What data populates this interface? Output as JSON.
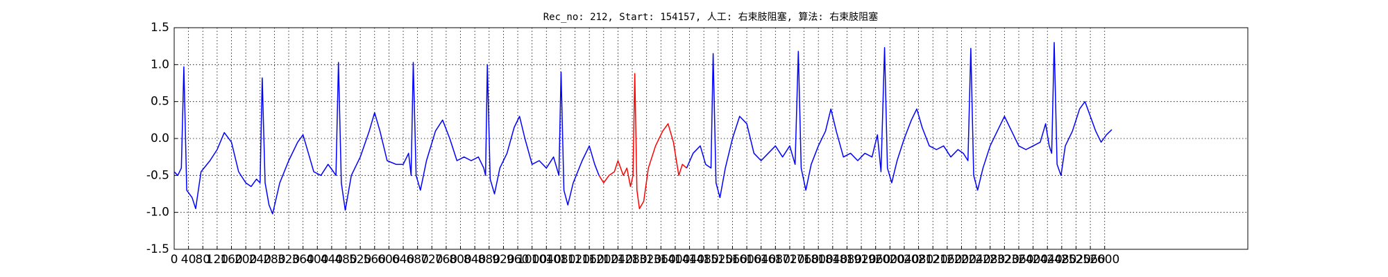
{
  "chart_data": {
    "type": "line",
    "title": "Rec_no: 212, Start: 154157, 人工: 右束肢阻塞, 算法: 右束肢阻塞",
    "xlim": [
      0,
      3000
    ],
    "ylim": [
      -1.5,
      1.5
    ],
    "xticks": [
      0,
      40,
      80,
      120,
      160,
      200,
      240,
      280,
      320,
      360,
      400,
      440,
      480,
      520,
      560,
      600,
      640,
      680,
      720,
      760,
      800,
      840,
      880,
      920,
      960,
      1000,
      1040,
      1080,
      1120,
      1160,
      1200,
      1240,
      1280,
      1320,
      1360,
      1400,
      1440,
      1480,
      1520,
      1560,
      1600,
      1640,
      1680,
      1720,
      1760,
      1800,
      1840,
      1880,
      1920,
      1960,
      2000,
      2040,
      2080,
      2120,
      2160,
      2200,
      2240,
      2280,
      2320,
      2360,
      2400,
      2440,
      2480,
      2520,
      2560,
      2600
    ],
    "yticks": [
      -1.5,
      {
        "value": -1.0,
        "label": "-1.0"
      },
      -0.5,
      {
        "value": 0.0,
        "label": "0.0"
      },
      0.5,
      {
        "value": 1.0,
        "label": "1.0"
      },
      1.5
    ],
    "grid": true,
    "series": [
      {
        "color": "#0000ff",
        "x": [
          0,
          10,
          20,
          27,
          35,
          50,
          60,
          75,
          100,
          120,
          140,
          160,
          180,
          200,
          215,
          230,
          240,
          246,
          254,
          265,
          275,
          295,
          320,
          345,
          360,
          375,
          390,
          410,
          430,
          445,
          452,
          459,
          467,
          478,
          495,
          520,
          545,
          560,
          575,
          595,
          620,
          640,
          655,
          662,
          668,
          676,
          688,
          705,
          730,
          750,
          770,
          790,
          810,
          830,
          850,
          865,
          870,
          875,
          883,
          895,
          910,
          930,
          950,
          965,
          980,
          1000,
          1020,
          1040,
          1060,
          1075,
          1081,
          1089,
          1100,
          1115,
          1140,
          1160,
          1175,
          1187
        ],
        "values": [
          -0.45,
          -0.5,
          -0.4,
          0.97,
          -0.7,
          -0.8,
          -0.95,
          -0.45,
          -0.3,
          -0.15,
          0.08,
          -0.05,
          -0.45,
          -0.6,
          -0.65,
          -0.55,
          -0.6,
          0.82,
          -0.6,
          -0.9,
          -1.02,
          -0.6,
          -0.3,
          -0.05,
          0.05,
          -0.2,
          -0.45,
          -0.5,
          -0.35,
          -0.45,
          -0.5,
          1.03,
          -0.6,
          -0.97,
          -0.5,
          -0.25,
          0.1,
          0.35,
          0.1,
          -0.3,
          -0.35,
          -0.35,
          -0.2,
          -0.5,
          1.03,
          -0.5,
          -0.7,
          -0.3,
          0.1,
          0.25,
          0.0,
          -0.3,
          -0.25,
          -0.3,
          -0.25,
          -0.4,
          -0.5,
          1.0,
          -0.55,
          -0.75,
          -0.4,
          -0.2,
          0.15,
          0.3,
          0.0,
          -0.35,
          -0.3,
          -0.4,
          -0.25,
          -0.5,
          0.9,
          -0.7,
          -0.9,
          -0.6,
          -0.3,
          -0.1,
          -0.35,
          -0.5
        ]
      },
      {
        "color": "#ff0000",
        "x": [
          1187,
          1200,
          1215,
          1230,
          1240,
          1255,
          1265,
          1275,
          1282,
          1287,
          1293,
          1300,
          1312,
          1325,
          1345,
          1365,
          1380,
          1395,
          1410,
          1420,
          1432
        ],
        "values": [
          -0.5,
          -0.6,
          -0.5,
          -0.45,
          -0.3,
          -0.5,
          -0.4,
          -0.65,
          -0.5,
          0.88,
          -0.7,
          -0.95,
          -0.85,
          -0.4,
          -0.1,
          0.1,
          0.2,
          -0.05,
          -0.5,
          -0.35,
          -0.4
        ]
      },
      {
        "color": "#0000ff",
        "x": [
          1432,
          1450,
          1470,
          1485,
          1500,
          1506,
          1514,
          1525,
          1540,
          1560,
          1580,
          1600,
          1620,
          1640,
          1660,
          1680,
          1700,
          1720,
          1735,
          1744,
          1752,
          1765,
          1780,
          1800,
          1820,
          1835,
          1850,
          1870,
          1890,
          1910,
          1930,
          1950,
          1965,
          1975,
          1985,
          1993,
          2005,
          2020,
          2040,
          2060,
          2075,
          2090,
          2110,
          2130,
          2150,
          2170,
          2190,
          2205,
          2218,
          2226,
          2234,
          2245,
          2260,
          2280,
          2300,
          2320,
          2340,
          2360,
          2380,
          2400,
          2420,
          2435,
          2445,
          2452,
          2459,
          2467,
          2478,
          2490,
          2510,
          2530,
          2545,
          2560,
          2575,
          2590,
          2605,
          2620
        ],
        "values": [
          -0.4,
          -0.2,
          -0.1,
          -0.35,
          -0.4,
          1.15,
          -0.6,
          -0.8,
          -0.4,
          0.0,
          0.3,
          0.2,
          -0.2,
          -0.3,
          -0.2,
          -0.1,
          -0.25,
          -0.1,
          -0.35,
          1.18,
          -0.4,
          -0.7,
          -0.35,
          -0.1,
          0.1,
          0.4,
          0.1,
          -0.25,
          -0.2,
          -0.3,
          -0.2,
          -0.25,
          0.05,
          -0.45,
          1.23,
          -0.4,
          -0.6,
          -0.3,
          0.0,
          0.25,
          0.4,
          0.15,
          -0.1,
          -0.15,
          -0.1,
          -0.25,
          -0.15,
          -0.2,
          -0.3,
          1.22,
          -0.5,
          -0.7,
          -0.4,
          -0.1,
          0.1,
          0.3,
          0.1,
          -0.1,
          -0.15,
          -0.1,
          -0.05,
          0.2,
          -0.1,
          -0.2,
          1.3,
          -0.35,
          -0.5,
          -0.1,
          0.1,
          0.4,
          0.5,
          0.3,
          0.1,
          -0.05,
          0.05,
          0.12
        ]
      }
    ]
  }
}
